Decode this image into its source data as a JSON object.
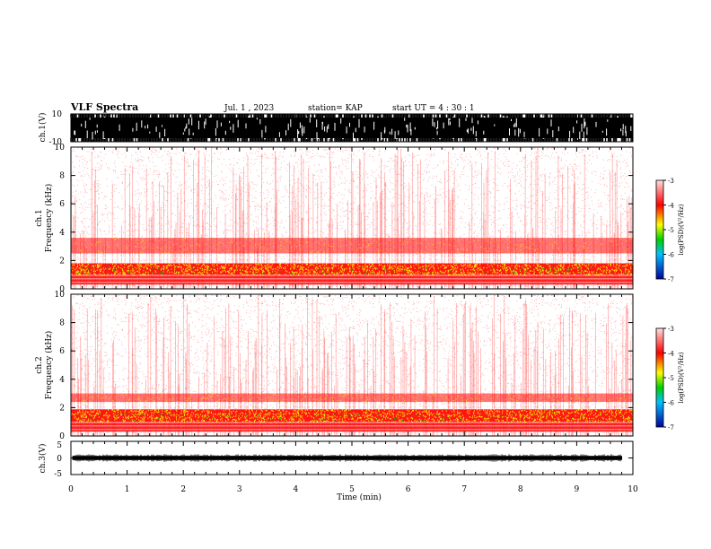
{
  "header": {
    "title": "VLF Spectra",
    "date": "Jul.  1  , 2023",
    "station": "station= KAP",
    "start": "start  UT =   4 : 30 : 1"
  },
  "chart_data": [
    {
      "type": "line",
      "id": "ch1-waveform",
      "ylabel": "ch.1(V)",
      "ylim": [
        -10,
        10
      ],
      "yticks": [
        "10",
        "-10"
      ],
      "xlim": [
        0,
        10
      ],
      "description_values": "saturated waveform between -10 and 10 V"
    },
    {
      "type": "heatmap",
      "id": "ch1-spectrogram",
      "ylabel": "ch.1\nFrequency  (kHz)",
      "ylabel_lines": [
        "ch.1",
        "Frequency  (kHz)"
      ],
      "ylim": [
        0,
        10
      ],
      "yticks": [
        "0",
        "2",
        "4",
        "6",
        "8",
        "10"
      ],
      "xlim": [
        0,
        10
      ],
      "bands_khz": [
        [
          0.3,
          1.0
        ],
        [
          1.0,
          1.8
        ],
        [
          2.5,
          3.6
        ]
      ],
      "colorbar": {
        "label": "log(PSD)(V²/Hz)",
        "range": [
          -7,
          -3
        ],
        "ticks": [
          "-3",
          "-4",
          "-5",
          "-6",
          "-7"
        ]
      }
    },
    {
      "type": "heatmap",
      "id": "ch2-spectrogram",
      "ylabel": "ch.2\nFrequency  (kHz)",
      "ylabel_lines": [
        "ch.2",
        "Frequency  (kHz)"
      ],
      "ylim": [
        0,
        10
      ],
      "yticks": [
        "0",
        "2",
        "4",
        "6",
        "8",
        "10"
      ],
      "xlim": [
        0,
        10
      ],
      "bands_khz": [
        [
          0.3,
          1.0
        ],
        [
          1.0,
          1.9
        ],
        [
          2.4,
          3.0
        ]
      ],
      "colorbar": {
        "label": "log(PSD)(V²/Hz)",
        "range": [
          -7,
          -3
        ],
        "ticks": [
          "-3",
          "-4",
          "-5",
          "-6",
          "-7"
        ]
      }
    },
    {
      "type": "line",
      "id": "ch3-waveform",
      "ylabel": "ch.3(V)",
      "ylim": [
        -5,
        5
      ],
      "yticks": [
        "5",
        "0",
        "-5"
      ],
      "xlim": [
        0,
        10
      ],
      "description_values": "flat waveform near 0 V"
    }
  ],
  "xaxis": {
    "label": "Time  (min)",
    "ticks": [
      "0",
      "1",
      "2",
      "3",
      "4",
      "5",
      "6",
      "7",
      "8",
      "9",
      "10"
    ]
  },
  "colors": {
    "text": "#000000",
    "low": "#ff0000",
    "mid": "#ffff00",
    "high": "#00c000"
  }
}
